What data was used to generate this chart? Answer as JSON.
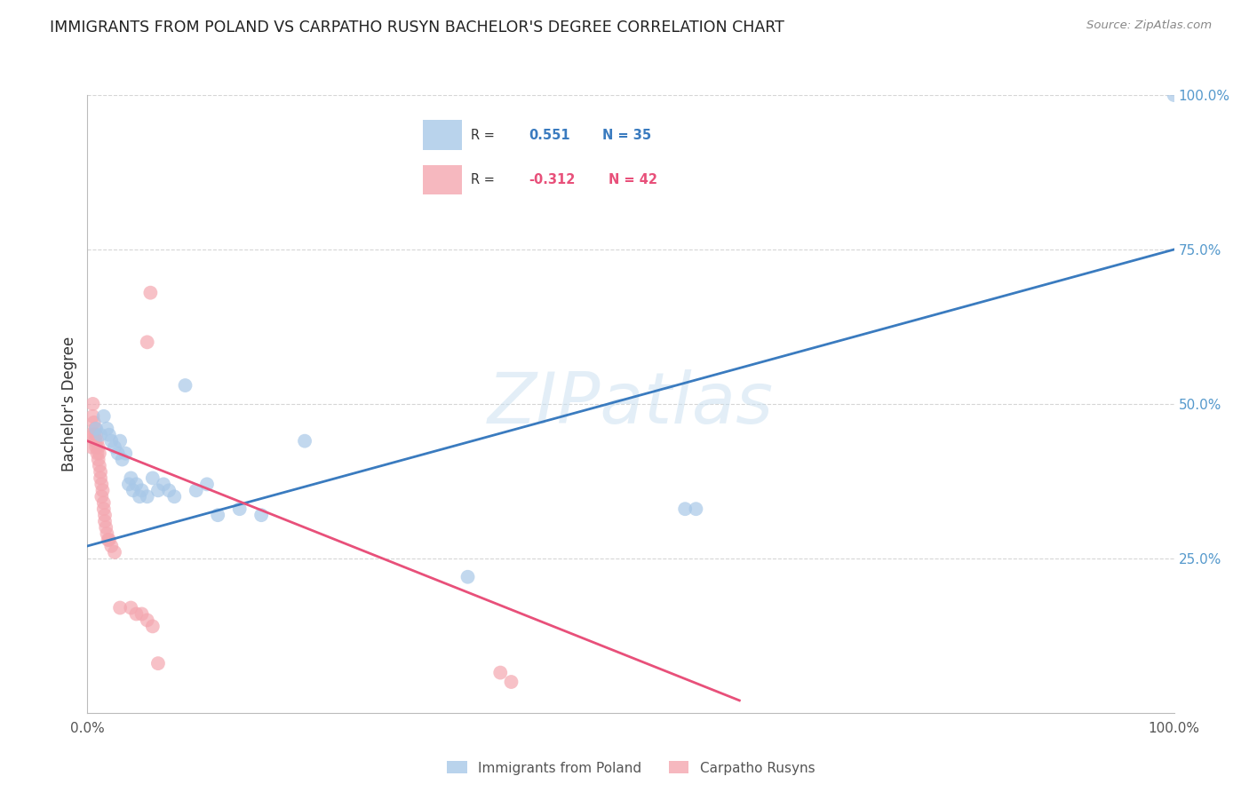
{
  "title": "IMMIGRANTS FROM POLAND VS CARPATHO RUSYN BACHELOR'S DEGREE CORRELATION CHART",
  "source": "Source: ZipAtlas.com",
  "ylabel": "Bachelor's Degree",
  "watermark": "ZIPatlas",
  "legend_label_blue": "Immigrants from Poland",
  "legend_label_pink": "Carpatho Rusyns",
  "blue_color": "#a8c8e8",
  "pink_color": "#f4a7b0",
  "blue_line_color": "#3a7bbf",
  "pink_line_color": "#e8507a",
  "grid_color": "#cccccc",
  "title_color": "#222222",
  "right_tick_color": "#5599cc",
  "xlim": [
    0.0,
    1.0
  ],
  "ylim": [
    0.0,
    1.0
  ],
  "yticks_right": [
    0.25,
    0.5,
    0.75,
    1.0
  ],
  "ytick_labels_right": [
    "25.0%",
    "50.0%",
    "75.0%",
    "100.0%"
  ],
  "blue_scatter_x": [
    0.008,
    0.012,
    0.015,
    0.018,
    0.02,
    0.022,
    0.025,
    0.028,
    0.03,
    0.032,
    0.035,
    0.038,
    0.04,
    0.042,
    0.045,
    0.048,
    0.05,
    0.055,
    0.06,
    0.065,
    0.07,
    0.075,
    0.08,
    0.09,
    0.1,
    0.11,
    0.12,
    0.14,
    0.16,
    0.2,
    0.35,
    0.55,
    0.56,
    1.0
  ],
  "blue_scatter_y": [
    0.46,
    0.45,
    0.48,
    0.46,
    0.45,
    0.44,
    0.43,
    0.42,
    0.44,
    0.41,
    0.42,
    0.37,
    0.38,
    0.36,
    0.37,
    0.35,
    0.36,
    0.35,
    0.38,
    0.36,
    0.37,
    0.36,
    0.35,
    0.53,
    0.36,
    0.37,
    0.32,
    0.33,
    0.32,
    0.44,
    0.22,
    0.33,
    0.33,
    1.0
  ],
  "pink_scatter_x": [
    0.003,
    0.004,
    0.005,
    0.005,
    0.006,
    0.006,
    0.007,
    0.007,
    0.008,
    0.008,
    0.009,
    0.009,
    0.01,
    0.01,
    0.011,
    0.011,
    0.012,
    0.012,
    0.013,
    0.013,
    0.014,
    0.015,
    0.015,
    0.016,
    0.016,
    0.017,
    0.018,
    0.019,
    0.02,
    0.022,
    0.025,
    0.03,
    0.04,
    0.045,
    0.05,
    0.055,
    0.06,
    0.065,
    0.38,
    0.39,
    0.055,
    0.058
  ],
  "pink_scatter_y": [
    0.45,
    0.43,
    0.5,
    0.48,
    0.47,
    0.45,
    0.46,
    0.44,
    0.45,
    0.43,
    0.44,
    0.42,
    0.43,
    0.41,
    0.42,
    0.4,
    0.39,
    0.38,
    0.37,
    0.35,
    0.36,
    0.34,
    0.33,
    0.32,
    0.31,
    0.3,
    0.29,
    0.28,
    0.28,
    0.27,
    0.26,
    0.17,
    0.17,
    0.16,
    0.16,
    0.15,
    0.14,
    0.08,
    0.065,
    0.05,
    0.6,
    0.68
  ],
  "blue_line_x": [
    0.0,
    1.0
  ],
  "blue_line_y": [
    0.27,
    0.75
  ],
  "pink_line_x": [
    0.0,
    0.6
  ],
  "pink_line_y": [
    0.44,
    0.02
  ]
}
